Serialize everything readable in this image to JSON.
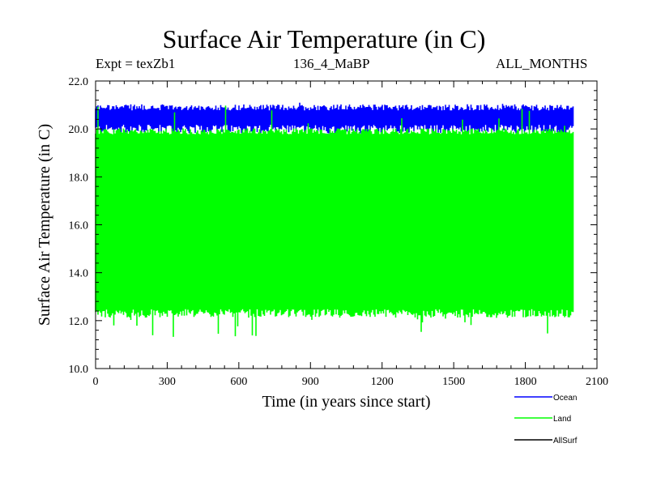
{
  "header": {
    "title": "Surface Air Temperature (in C)",
    "expt": "Expt = texZb1",
    "period": "136_4_MaBP",
    "months": "ALL_MONTHS"
  },
  "colors": {
    "ocean": "#0000ff",
    "land": "#00ff00",
    "allsurf": "#000000"
  },
  "chart_data": {
    "type": "line",
    "title": "Surface Air Temperature (in C)",
    "xlabel": "Time (in years since start)",
    "ylabel": "Surface Air Temperature (in C)",
    "xlim": [
      0,
      2100
    ],
    "ylim": [
      10.0,
      22.0
    ],
    "xticks": [
      0,
      300,
      600,
      900,
      1200,
      1500,
      1800,
      2100
    ],
    "xtick_labels": [
      "0",
      "300",
      "600",
      "900",
      "1200",
      "1500",
      "1800",
      "2100"
    ],
    "yticks": [
      10.0,
      12.0,
      14.0,
      16.0,
      18.0,
      20.0,
      22.0
    ],
    "ytick_labels": [
      "10.0",
      "12.0",
      "14.0",
      "16.0",
      "18.0",
      "20.0",
      "22.0"
    ],
    "legend_position": "bottom-right, below plot",
    "series": [
      {
        "name": "Ocean",
        "color": "#0000ff",
        "x_range": [
          0,
          2000
        ],
        "typical_min": 20.0,
        "typical_max": 20.9,
        "extreme_min": 19.8,
        "extreme_max": 21.1
      },
      {
        "name": "Land",
        "color": "#00ff00",
        "x_range": [
          0,
          2000
        ],
        "typical_min": 12.3,
        "typical_max": 19.9,
        "extreme_min": 11.3,
        "extreme_max": 21.0
      },
      {
        "name": "AllSurf",
        "color": "#000000",
        "x_range": [
          0,
          2000
        ]
      }
    ]
  }
}
